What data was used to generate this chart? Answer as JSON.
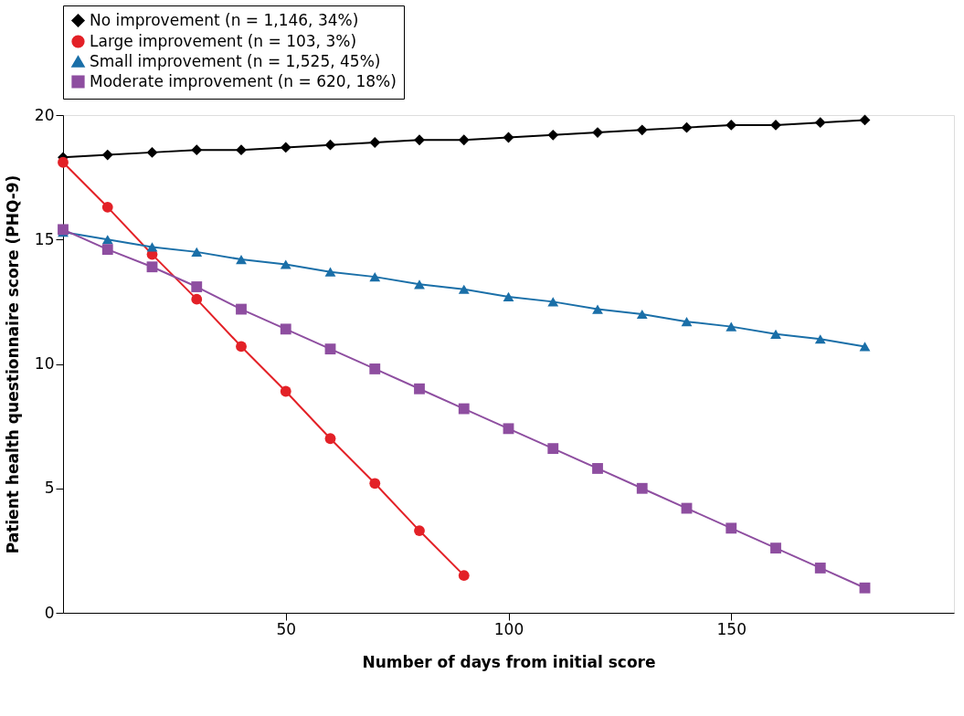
{
  "chart_data": {
    "type": "line",
    "xlabel": "Number of days from initial score",
    "ylabel": "Patient health questionnaire score (PHQ-9)",
    "x": [
      0,
      10,
      20,
      30,
      40,
      50,
      60,
      70,
      80,
      90,
      100,
      110,
      120,
      130,
      140,
      150,
      160,
      170,
      180
    ],
    "xlim": [
      0,
      200
    ],
    "xticks": [
      50,
      100,
      150
    ],
    "ylim": [
      0,
      20
    ],
    "yticks": [
      0,
      5,
      10,
      15,
      20
    ],
    "grid": false,
    "legend": "top",
    "line_style": "solid",
    "series": [
      {
        "name": "No improvement (n = 1,146, 34%)",
        "color": "#000000",
        "marker": "diamond",
        "values": [
          18.3,
          18.4,
          18.5,
          18.6,
          18.6,
          18.7,
          18.8,
          18.9,
          19.0,
          19.0,
          19.1,
          19.2,
          19.3,
          19.4,
          19.5,
          19.6,
          19.6,
          19.7,
          19.8
        ]
      },
      {
        "name": "Large improvement (n = 103, 3%)",
        "color": "#e32127",
        "marker": "circle",
        "values": [
          18.1,
          16.3,
          14.4,
          12.6,
          10.7,
          8.9,
          7.0,
          5.2,
          3.3,
          1.5,
          null,
          null,
          null,
          null,
          null,
          null,
          null,
          null,
          null
        ]
      },
      {
        "name": "Small improvement (n = 1,525, 45%)",
        "color": "#1a6fa8",
        "marker": "triangle",
        "values": [
          15.3,
          15.0,
          14.7,
          14.5,
          14.2,
          14.0,
          13.7,
          13.5,
          13.2,
          13.0,
          12.7,
          12.5,
          12.2,
          12.0,
          11.7,
          11.5,
          11.2,
          11.0,
          10.7
        ]
      },
      {
        "name": "Moderate improvement (n = 620, 18%)",
        "color": "#8e4ea0",
        "marker": "square",
        "values": [
          15.4,
          14.6,
          13.9,
          13.1,
          12.2,
          11.4,
          10.6,
          9.8,
          9.0,
          8.2,
          7.4,
          6.6,
          5.8,
          5.0,
          4.2,
          3.4,
          2.6,
          1.8,
          1.0
        ]
      }
    ]
  }
}
